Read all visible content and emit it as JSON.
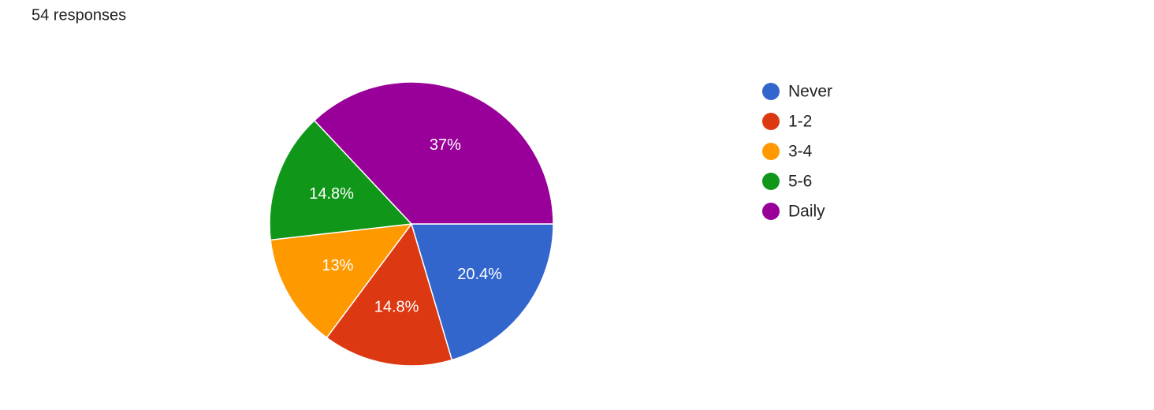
{
  "chart_data": {
    "type": "pie",
    "title": "54 responses",
    "categories": [
      "Never",
      "1-2",
      "3-4",
      "5-6",
      "Daily"
    ],
    "values": [
      20.4,
      14.8,
      13,
      14.8,
      37
    ],
    "value_labels": [
      "20.4%",
      "14.8%",
      "13%",
      "14.8%",
      "37%"
    ],
    "colors": [
      "#3366cc",
      "#dc3912",
      "#ff9900",
      "#109618",
      "#990099"
    ],
    "legend": "right"
  }
}
